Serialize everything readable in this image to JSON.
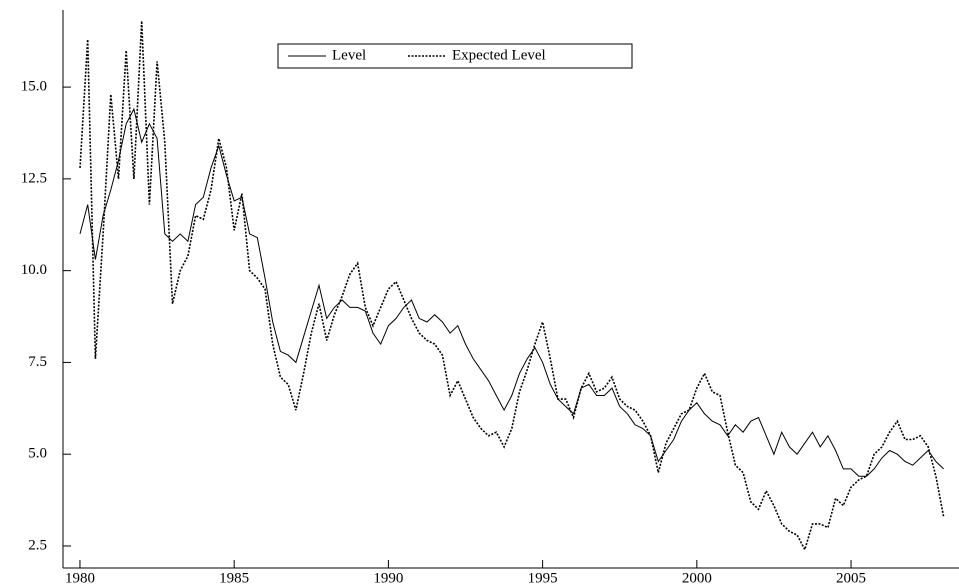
{
  "chart_data": {
    "type": "line",
    "x": [
      1980,
      1980.25,
      1980.5,
      1980.75,
      1981,
      1981.25,
      1981.5,
      1981.75,
      1982,
      1982.25,
      1982.5,
      1982.75,
      1983,
      1983.25,
      1983.5,
      1983.75,
      1984,
      1984.25,
      1984.5,
      1984.75,
      1985,
      1985.25,
      1985.5,
      1985.75,
      1986,
      1986.25,
      1986.5,
      1986.75,
      1987,
      1987.25,
      1987.5,
      1987.75,
      1988,
      1988.25,
      1988.5,
      1988.75,
      1989,
      1989.25,
      1989.5,
      1989.75,
      1990,
      1990.25,
      1990.5,
      1990.75,
      1991,
      1991.25,
      1991.5,
      1991.75,
      1992,
      1992.25,
      1992.5,
      1992.75,
      1993,
      1993.25,
      1993.5,
      1993.75,
      1994,
      1994.25,
      1994.5,
      1994.75,
      1995,
      1995.25,
      1995.5,
      1995.75,
      1996,
      1996.25,
      1996.5,
      1996.75,
      1997,
      1997.25,
      1997.5,
      1997.75,
      1998,
      1998.25,
      1998.5,
      1998.75,
      1999,
      1999.25,
      1999.5,
      1999.75,
      2000,
      2000.25,
      2000.5,
      2000.75,
      2001,
      2001.25,
      2001.5,
      2001.75,
      2002,
      2002.25,
      2002.5,
      2002.75,
      2003,
      2003.25,
      2003.5,
      2003.75,
      2004,
      2004.25,
      2004.5,
      2004.75,
      2005,
      2005.25,
      2005.5,
      2005.75,
      2006,
      2006.25,
      2006.5,
      2006.75,
      2007,
      2007.25,
      2007.5,
      2007.75,
      2008
    ],
    "series": [
      {
        "name": "Level",
        "color": "#000000",
        "dash": "solid",
        "values": [
          11.0,
          11.8,
          10.3,
          11.5,
          12.2,
          13.0,
          14.0,
          14.4,
          13.5,
          14.0,
          13.6,
          11.0,
          10.8,
          11.0,
          10.8,
          11.8,
          12.0,
          12.8,
          13.4,
          12.6,
          11.9,
          12.0,
          11.0,
          10.9,
          9.8,
          8.6,
          7.8,
          7.7,
          7.5,
          8.2,
          8.9,
          9.6,
          8.7,
          9.0,
          9.2,
          9.0,
          9.0,
          8.9,
          8.3,
          8.0,
          8.5,
          8.7,
          9.0,
          9.2,
          8.7,
          8.6,
          8.8,
          8.6,
          8.3,
          8.5,
          8.0,
          7.6,
          7.3,
          7.0,
          6.6,
          6.2,
          6.6,
          7.2,
          7.6,
          7.9,
          7.5,
          6.9,
          6.5,
          6.3,
          6.1,
          6.8,
          6.9,
          6.6,
          6.6,
          6.8,
          6.3,
          6.1,
          5.8,
          5.7,
          5.5,
          4.8,
          5.1,
          5.4,
          5.9,
          6.2,
          6.4,
          6.1,
          5.9,
          5.8,
          5.5,
          5.8,
          5.6,
          5.9,
          6.0,
          5.5,
          5.0,
          5.6,
          5.2,
          5.0,
          5.3,
          5.6,
          5.2,
          5.5,
          5.1,
          4.6,
          4.6,
          4.4,
          4.4,
          4.6,
          4.9,
          5.1,
          5.0,
          4.8,
          4.7,
          4.9,
          5.1,
          4.8,
          4.6
        ]
      },
      {
        "name": "Expected Level",
        "color": "#000000",
        "dash": "dashed",
        "values": [
          12.8,
          16.3,
          7.6,
          11.0,
          14.8,
          12.5,
          16.0,
          12.5,
          16.8,
          11.8,
          15.7,
          13.5,
          9.1,
          10.0,
          10.4,
          11.5,
          11.4,
          12.2,
          13.6,
          12.8,
          11.1,
          12.1,
          10.0,
          9.8,
          9.5,
          8.0,
          7.1,
          6.9,
          6.2,
          7.2,
          8.3,
          9.1,
          8.1,
          8.8,
          9.3,
          9.9,
          10.2,
          9.0,
          8.5,
          9.0,
          9.5,
          9.7,
          9.2,
          8.7,
          8.3,
          8.1,
          8.0,
          7.7,
          6.6,
          7.0,
          6.5,
          6.0,
          5.7,
          5.5,
          5.6,
          5.2,
          5.7,
          6.7,
          7.3,
          8.0,
          8.6,
          7.6,
          6.5,
          6.5,
          6.0,
          6.8,
          7.2,
          6.7,
          6.8,
          7.1,
          6.5,
          6.3,
          6.2,
          5.9,
          5.5,
          4.5,
          5.3,
          5.7,
          6.1,
          6.2,
          6.8,
          7.2,
          6.7,
          6.6,
          5.6,
          4.7,
          4.5,
          3.7,
          3.5,
          4.0,
          3.6,
          3.1,
          2.9,
          2.8,
          2.4,
          3.1,
          3.1,
          3.0,
          3.8,
          3.6,
          4.1,
          4.3,
          4.4,
          5.0,
          5.2,
          5.6,
          5.9,
          5.4,
          5.4,
          5.5,
          5.2,
          4.4,
          3.3
        ]
      }
    ],
    "xlim": [
      1979.45,
      2008.5
    ],
    "xticks": [
      1980,
      1985,
      1990,
      1995,
      2000,
      2005
    ],
    "ylim": [
      1.9,
      17.1
    ],
    "yticks": [
      2.5,
      {
        "value": 5,
        "label": "5.0"
      },
      7.5,
      {
        "value": 10,
        "label": "10.0"
      },
      12.5,
      {
        "value": 15,
        "label": "15.0"
      }
    ],
    "legend": "top"
  }
}
